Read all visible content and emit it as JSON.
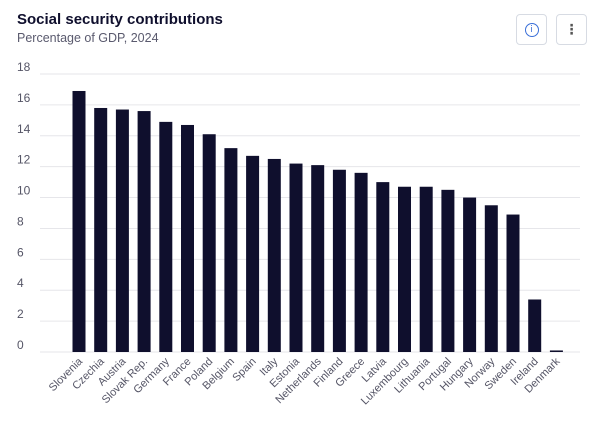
{
  "header": {
    "title": "Social security contributions",
    "subtitle": "Percentage of GDP, 2024"
  },
  "icons": {
    "info": "info-icon",
    "more": "more-vertical-icon",
    "info_glyph": "i",
    "more_glyph": "⋮"
  },
  "colors": {
    "bar": "#0f0f2d",
    "grid": "#e6e6ea",
    "accent": "#3a6fd8"
  },
  "chart_data": {
    "type": "bar",
    "title": "Social security contributions",
    "subtitle": "Percentage of GDP, 2024",
    "xlabel": "",
    "ylabel": "",
    "ylim": [
      0,
      18
    ],
    "yticks": [
      0,
      2,
      4,
      6,
      8,
      10,
      12,
      14,
      16,
      18
    ],
    "grid": true,
    "categories": [
      "Slovenia",
      "Czechia",
      "Austria",
      "Slovak Rep.",
      "Germany",
      "France",
      "Poland",
      "Belgium",
      "Spain",
      "Italy",
      "Estonia",
      "Netherlands",
      "Finland",
      "Greece",
      "Latvia",
      "Luxembourg",
      "Lithuania",
      "Portugal",
      "Hungary",
      "Norway",
      "Sweden",
      "Ireland",
      "Denmark"
    ],
    "values": [
      16.9,
      15.8,
      15.7,
      15.6,
      14.9,
      14.7,
      14.1,
      13.2,
      12.7,
      12.5,
      12.2,
      12.1,
      11.8,
      11.6,
      11.0,
      10.7,
      10.7,
      10.5,
      10.0,
      9.5,
      8.9,
      3.4,
      0.1
    ]
  }
}
